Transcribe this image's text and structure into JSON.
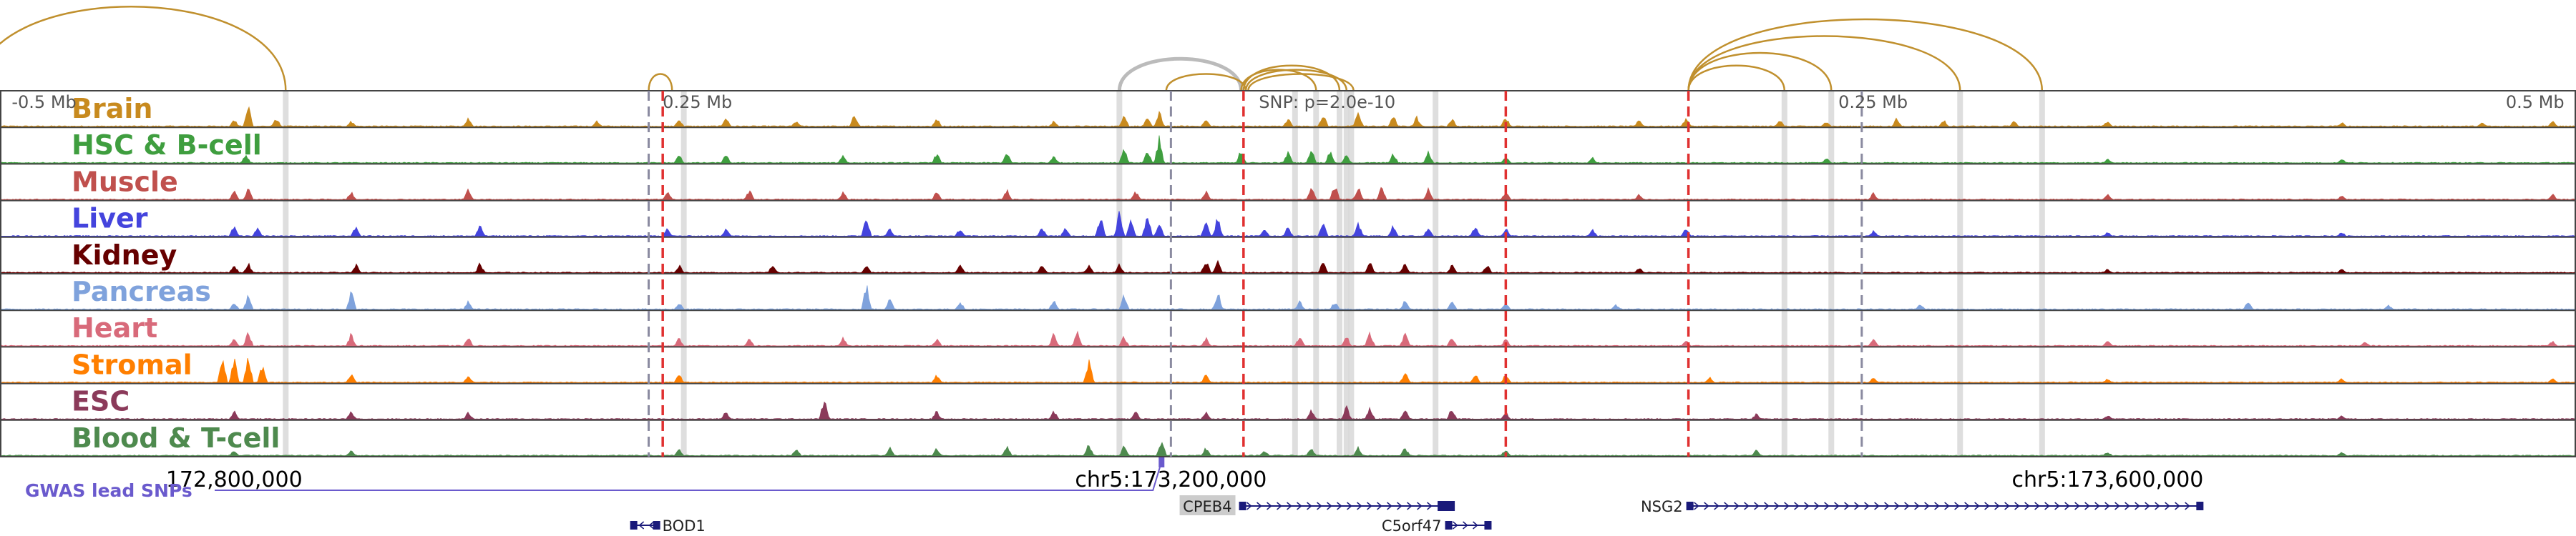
{
  "chart_data": {
    "type": "area",
    "title": "",
    "genome": {
      "chrom": "chr5",
      "start": 172700000,
      "end": 173800000
    },
    "scale_labels": [
      {
        "text": "-0.5 Mb",
        "pos": 172705000
      },
      {
        "text": "0.25 Mb",
        "pos": 172983000
      },
      {
        "text": "0.25 Mb",
        "pos": 173485000
      },
      {
        "text": "0.5 Mb",
        "pos": 173795000
      }
    ],
    "snp_label": {
      "text": "SNP: p=2.0e-10",
      "pos": 173251000
    },
    "coordinate_labels": [
      {
        "text": "172,800,000",
        "pos": 172800000
      },
      {
        "text": "chr5:173,200,000",
        "pos": 173200000
      },
      {
        "text": "chr5:173,600,000",
        "pos": 173600000
      }
    ],
    "tracks": [
      {
        "name": "Brain",
        "color": "#c88a1e"
      },
      {
        "name": "HSC & B-cell",
        "color": "#3f9e3f"
      },
      {
        "name": "Muscle",
        "color": "#c0504d"
      },
      {
        "name": "Liver",
        "color": "#4444dd"
      },
      {
        "name": "Kidney",
        "color": "#660000"
      },
      {
        "name": "Pancreas",
        "color": "#7fa2dc"
      },
      {
        "name": "Heart",
        "color": "#d86a7a"
      },
      {
        "name": "Stromal",
        "color": "#ff7f00"
      },
      {
        "name": "ESC",
        "color": "#8b3a5a"
      },
      {
        "name": "Blood & T-cell",
        "color": "#4e8a4e"
      }
    ],
    "peaks": [
      [
        [
          172800000,
          0.25
        ],
        [
          172806000,
          0.8
        ],
        [
          172818000,
          0.3
        ],
        [
          172850000,
          0.2
        ],
        [
          172900000,
          0.35
        ],
        [
          172955000,
          0.2
        ],
        [
          172990000,
          0.25
        ],
        [
          173010000,
          0.35
        ],
        [
          173040000,
          0.2
        ],
        [
          173065000,
          0.45
        ],
        [
          173100000,
          0.3
        ],
        [
          173150000,
          0.2
        ],
        [
          173180000,
          0.45
        ],
        [
          173190000,
          0.3
        ],
        [
          173195000,
          0.55
        ],
        [
          173215000,
          0.25
        ],
        [
          173250000,
          0.3
        ],
        [
          173265000,
          0.5
        ],
        [
          173280000,
          0.55
        ],
        [
          173295000,
          0.4
        ],
        [
          173305000,
          0.35
        ],
        [
          173320000,
          0.3
        ],
        [
          173343000,
          0.35
        ],
        [
          173400000,
          0.25
        ],
        [
          173420000,
          0.3
        ],
        [
          173460000,
          0.25
        ],
        [
          173480000,
          0.2
        ],
        [
          173510000,
          0.3
        ],
        [
          173530000,
          0.25
        ],
        [
          173560000,
          0.2
        ],
        [
          173600000,
          0.2
        ],
        [
          173700000,
          0.15
        ],
        [
          173760000,
          0.15
        ],
        [
          173790000,
          0.2
        ]
      ],
      [
        [
          172805000,
          0.3
        ],
        [
          172990000,
          0.3
        ],
        [
          173010000,
          0.3
        ],
        [
          173060000,
          0.3
        ],
        [
          173100000,
          0.35
        ],
        [
          173130000,
          0.4
        ],
        [
          173150000,
          0.3
        ],
        [
          173180000,
          0.5
        ],
        [
          173190000,
          0.5
        ],
        [
          173195000,
          0.9
        ],
        [
          173230000,
          0.5
        ],
        [
          173250000,
          0.4
        ],
        [
          173260000,
          0.6
        ],
        [
          173268000,
          0.45
        ],
        [
          173275000,
          0.3
        ],
        [
          173295000,
          0.35
        ],
        [
          173310000,
          0.4
        ],
        [
          173343000,
          0.25
        ],
        [
          173380000,
          0.2
        ],
        [
          173480000,
          0.2
        ],
        [
          173600000,
          0.15
        ],
        [
          173700000,
          0.15
        ]
      ],
      [
        [
          172800000,
          0.3
        ],
        [
          172806000,
          0.4
        ],
        [
          172850000,
          0.3
        ],
        [
          172900000,
          0.4
        ],
        [
          172985000,
          0.3
        ],
        [
          173020000,
          0.35
        ],
        [
          173060000,
          0.3
        ],
        [
          173100000,
          0.3
        ],
        [
          173130000,
          0.35
        ],
        [
          173185000,
          0.3
        ],
        [
          173215000,
          0.3
        ],
        [
          173260000,
          0.45
        ],
        [
          173270000,
          0.55
        ],
        [
          173280000,
          0.5
        ],
        [
          173290000,
          0.45
        ],
        [
          173310000,
          0.4
        ],
        [
          173343000,
          0.3
        ],
        [
          173400000,
          0.2
        ],
        [
          173500000,
          0.25
        ],
        [
          173600000,
          0.2
        ],
        [
          173700000,
          0.15
        ],
        [
          173790000,
          0.2
        ]
      ],
      [
        [
          172800000,
          0.4
        ],
        [
          172810000,
          0.3
        ],
        [
          172852000,
          0.35
        ],
        [
          172905000,
          0.4
        ],
        [
          172985000,
          0.3
        ],
        [
          173010000,
          0.3
        ],
        [
          173070000,
          0.75
        ],
        [
          173080000,
          0.3
        ],
        [
          173110000,
          0.3
        ],
        [
          173145000,
          0.35
        ],
        [
          173155000,
          0.35
        ],
        [
          173170000,
          0.7
        ],
        [
          173178000,
          0.9
        ],
        [
          173183000,
          0.6
        ],
        [
          173190000,
          0.8
        ],
        [
          173195000,
          0.5
        ],
        [
          173215000,
          0.5
        ],
        [
          173220000,
          0.7
        ],
        [
          173240000,
          0.3
        ],
        [
          173250000,
          0.35
        ],
        [
          173265000,
          0.5
        ],
        [
          173280000,
          0.45
        ],
        [
          173295000,
          0.4
        ],
        [
          173310000,
          0.35
        ],
        [
          173330000,
          0.4
        ],
        [
          173343000,
          0.3
        ],
        [
          173380000,
          0.25
        ],
        [
          173420000,
          0.3
        ],
        [
          173500000,
          0.2
        ],
        [
          173600000,
          0.15
        ],
        [
          173700000,
          0.15
        ]
      ],
      [
        [
          172800000,
          0.3
        ],
        [
          172806000,
          0.35
        ],
        [
          172852000,
          0.3
        ],
        [
          172905000,
          0.35
        ],
        [
          172990000,
          0.3
        ],
        [
          173030000,
          0.3
        ],
        [
          173070000,
          0.3
        ],
        [
          173110000,
          0.3
        ],
        [
          173145000,
          0.35
        ],
        [
          173165000,
          0.3
        ],
        [
          173178000,
          0.3
        ],
        [
          173215000,
          0.45
        ],
        [
          173220000,
          0.4
        ],
        [
          173265000,
          0.45
        ],
        [
          173285000,
          0.4
        ],
        [
          173300000,
          0.35
        ],
        [
          173320000,
          0.3
        ],
        [
          173335000,
          0.3
        ],
        [
          173400000,
          0.2
        ],
        [
          173600000,
          0.15
        ],
        [
          173700000,
          0.15
        ]
      ],
      [
        [
          172800000,
          0.25
        ],
        [
          172806000,
          0.5
        ],
        [
          172850000,
          0.65
        ],
        [
          172900000,
          0.3
        ],
        [
          172990000,
          0.25
        ],
        [
          173070000,
          0.9
        ],
        [
          173080000,
          0.4
        ],
        [
          173110000,
          0.3
        ],
        [
          173150000,
          0.35
        ],
        [
          173180000,
          0.55
        ],
        [
          173220000,
          0.65
        ],
        [
          173255000,
          0.3
        ],
        [
          173270000,
          0.3
        ],
        [
          173300000,
          0.35
        ],
        [
          173320000,
          0.3
        ],
        [
          173343000,
          0.25
        ],
        [
          173390000,
          0.2
        ],
        [
          173520000,
          0.2
        ],
        [
          173660000,
          0.3
        ],
        [
          173720000,
          0.15
        ]
      ],
      [
        [
          172800000,
          0.25
        ],
        [
          172806000,
          0.5
        ],
        [
          172850000,
          0.45
        ],
        [
          172900000,
          0.3
        ],
        [
          172990000,
          0.3
        ],
        [
          173020000,
          0.3
        ],
        [
          173060000,
          0.3
        ],
        [
          173100000,
          0.3
        ],
        [
          173150000,
          0.45
        ],
        [
          173160000,
          0.5
        ],
        [
          173180000,
          0.35
        ],
        [
          173215000,
          0.3
        ],
        [
          173255000,
          0.35
        ],
        [
          173275000,
          0.35
        ],
        [
          173285000,
          0.5
        ],
        [
          173300000,
          0.45
        ],
        [
          173320000,
          0.35
        ],
        [
          173343000,
          0.25
        ],
        [
          173420000,
          0.2
        ],
        [
          173500000,
          0.25
        ],
        [
          173600000,
          0.2
        ],
        [
          173710000,
          0.15
        ],
        [
          173790000,
          0.2
        ]
      ],
      [
        [
          172795000,
          0.85
        ],
        [
          172800000,
          0.9
        ],
        [
          172806000,
          0.95
        ],
        [
          172812000,
          0.6
        ],
        [
          172850000,
          0.35
        ],
        [
          172900000,
          0.3
        ],
        [
          172990000,
          0.3
        ],
        [
          173100000,
          0.3
        ],
        [
          173165000,
          0.85
        ],
        [
          173215000,
          0.3
        ],
        [
          173300000,
          0.4
        ],
        [
          173330000,
          0.3
        ],
        [
          173343000,
          0.3
        ],
        [
          173430000,
          0.2
        ],
        [
          173500000,
          0.2
        ],
        [
          173600000,
          0.15
        ],
        [
          173700000,
          0.15
        ],
        [
          173790000,
          0.2
        ]
      ],
      [
        [
          172800000,
          0.3
        ],
        [
          172850000,
          0.3
        ],
        [
          172900000,
          0.25
        ],
        [
          173010000,
          0.3
        ],
        [
          173052000,
          0.75
        ],
        [
          173100000,
          0.3
        ],
        [
          173150000,
          0.3
        ],
        [
          173185000,
          0.3
        ],
        [
          173215000,
          0.3
        ],
        [
          173260000,
          0.35
        ],
        [
          173275000,
          0.45
        ],
        [
          173285000,
          0.4
        ],
        [
          173300000,
          0.35
        ],
        [
          173320000,
          0.4
        ],
        [
          173343000,
          0.25
        ],
        [
          173450000,
          0.2
        ],
        [
          173600000,
          0.15
        ],
        [
          173700000,
          0.15
        ]
      ],
      [
        [
          172800000,
          0.2
        ],
        [
          172850000,
          0.2
        ],
        [
          172990000,
          0.25
        ],
        [
          173040000,
          0.3
        ],
        [
          173080000,
          0.3
        ],
        [
          173100000,
          0.3
        ],
        [
          173130000,
          0.35
        ],
        [
          173165000,
          0.45
        ],
        [
          173180000,
          0.35
        ],
        [
          173196000,
          0.55
        ],
        [
          173215000,
          0.3
        ],
        [
          173240000,
          0.2
        ],
        [
          173260000,
          0.3
        ],
        [
          173280000,
          0.3
        ],
        [
          173300000,
          0.3
        ],
        [
          173343000,
          0.25
        ],
        [
          173450000,
          0.2
        ],
        [
          173600000,
          0.15
        ],
        [
          173700000,
          0.15
        ]
      ]
    ],
    "red_dashed_lines": [
      172983000,
      173231000,
      173343000,
      173421000
    ],
    "grey_dashed_lines": [
      172977000,
      173200000,
      173495000
    ],
    "grey_bands": [
      172822000,
      172992000,
      173178000,
      173253000,
      173262000,
      173272000,
      173275000,
      173277000,
      173313000,
      173462000,
      173482000,
      173537000,
      173572000
    ],
    "loops": [
      {
        "from": 172690000,
        "to": 172822000,
        "height": 1.0
      },
      {
        "from": 172977000,
        "to": 172987000,
        "height": 0.2
      },
      {
        "from": 173178000,
        "to": 173230000,
        "height": 0.38
      },
      {
        "from": 173198000,
        "to": 173232000,
        "height": 0.2
      },
      {
        "from": 173230000,
        "to": 173262000,
        "height": 0.25
      },
      {
        "from": 173231000,
        "to": 173272000,
        "height": 0.3
      },
      {
        "from": 173232000,
        "to": 173275000,
        "height": 0.25
      },
      {
        "from": 173233000,
        "to": 173278000,
        "height": 0.2
      },
      {
        "from": 173421000,
        "to": 173462000,
        "height": 0.3
      },
      {
        "from": 173421000,
        "to": 173482000,
        "height": 0.45
      },
      {
        "from": 173421000,
        "to": 173537000,
        "height": 0.65
      },
      {
        "from": 173421000,
        "to": 173572000,
        "height": 0.85
      }
    ],
    "gwas": {
      "label": "GWAS lead SNPs",
      "snp": 173196000
    },
    "genes": [
      {
        "name": "BOD1",
        "start": 172970000,
        "end": 172981000,
        "strand": "-",
        "row": 2
      },
      {
        "name": "CPEB4",
        "start": 173230000,
        "end": 173317000,
        "strand": "+",
        "row": 1,
        "highlight": true
      },
      {
        "name": "C5orf47",
        "start": 173318000,
        "end": 173336000,
        "strand": "+",
        "row": 2
      },
      {
        "name": "NSG2",
        "start": 173421000,
        "end": 173640000,
        "strand": "+",
        "row": 1
      }
    ]
  }
}
